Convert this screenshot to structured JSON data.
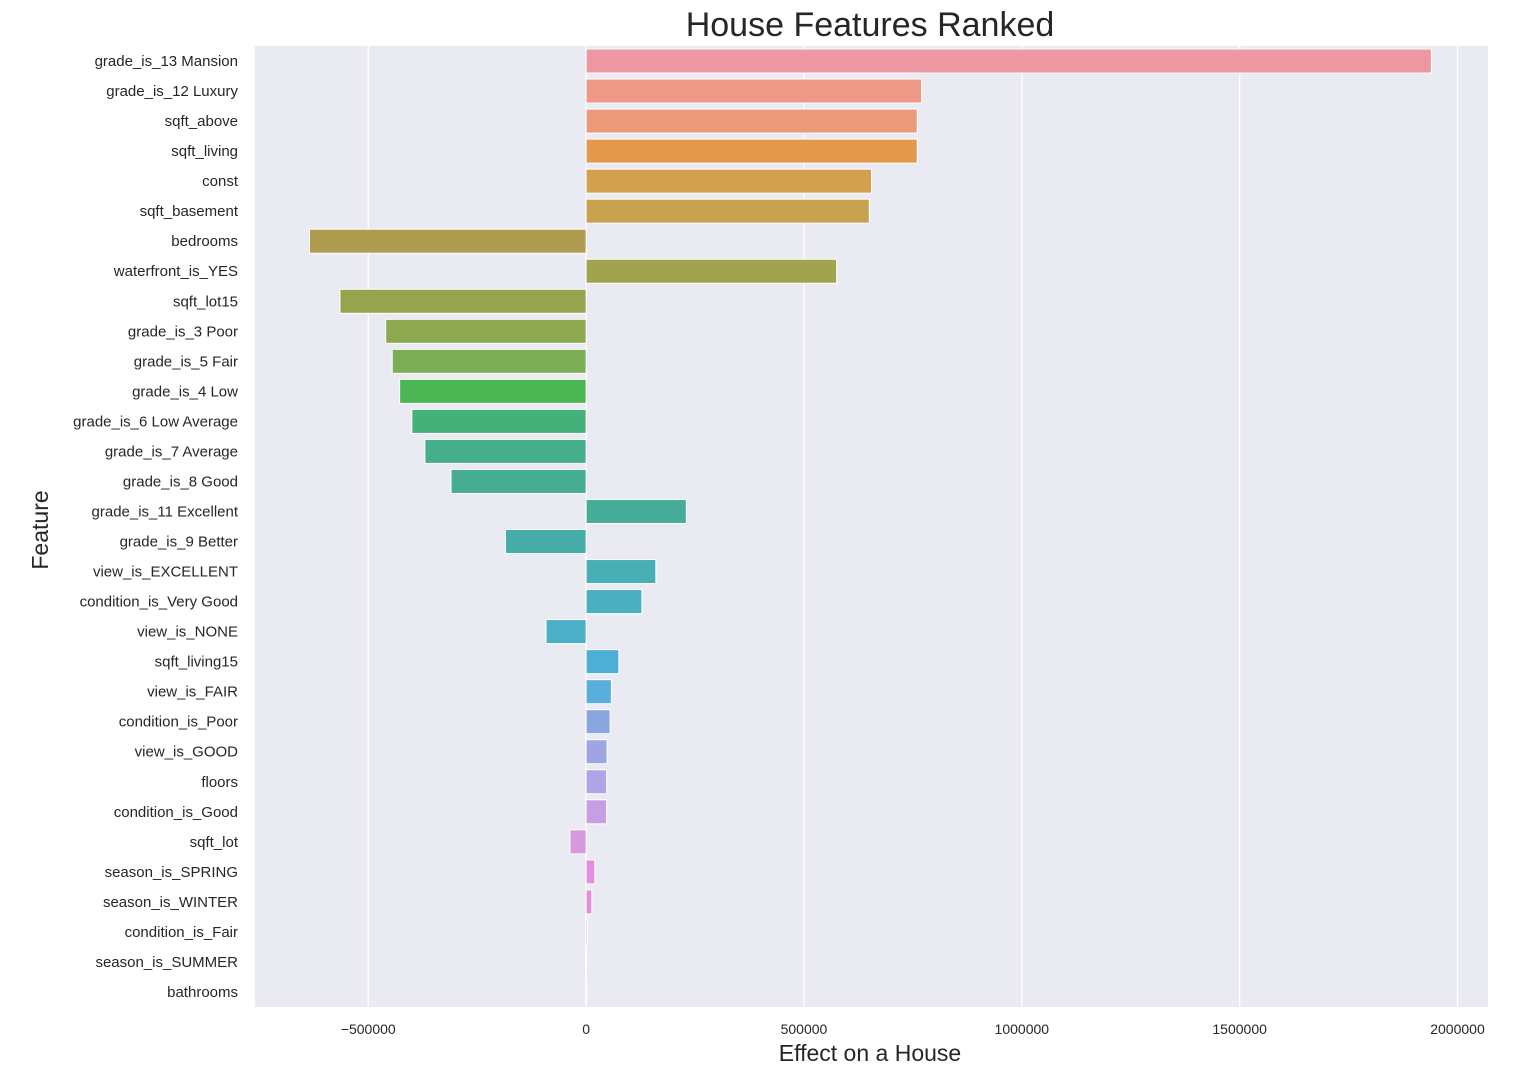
{
  "chart_data": {
    "type": "bar",
    "orientation": "horizontal",
    "title": "House Features Ranked",
    "xlabel": "Effect on a House",
    "ylabel": "Feature",
    "xlim": [
      -760000,
      2070000
    ],
    "xticks": [
      -500000,
      0,
      500000,
      1000000,
      1500000,
      2000000
    ],
    "xtick_labels": [
      "−500000",
      "0",
      "500000",
      "1000000",
      "1500000",
      "2000000"
    ],
    "grid": true,
    "background": "#EAEAF2",
    "categories": [
      "grade_is_13 Mansion",
      "grade_is_12 Luxury",
      "sqft_above",
      "sqft_living",
      "const",
      "sqft_basement",
      "bedrooms",
      "waterfront_is_YES",
      "sqft_lot15",
      "grade_is_3 Poor",
      "grade_is_5 Fair",
      "grade_is_4 Low",
      "grade_is_6 Low Average",
      "grade_is_7 Average",
      "grade_is_8 Good",
      "grade_is_11 Excellent",
      "grade_is_9 Better",
      "view_is_EXCELLENT",
      "condition_is_Very Good",
      "view_is_NONE",
      "sqft_living15",
      "view_is_FAIR",
      "condition_is_Poor",
      "view_is_GOOD",
      "floors",
      "condition_is_Good",
      "sqft_lot",
      "season_is_SPRING",
      "season_is_WINTER",
      "condition_is_Fair",
      "season_is_SUMMER",
      "bathrooms"
    ],
    "values": [
      1940000,
      770000,
      760000,
      760000,
      655000,
      650000,
      -635000,
      575000,
      -565000,
      -460000,
      -445000,
      -428000,
      -400000,
      -370000,
      -310000,
      230000,
      -185000,
      160000,
      128000,
      -92000,
      75000,
      58000,
      55000,
      48000,
      47000,
      47000,
      -37000,
      20000,
      13000,
      3000,
      -1500,
      -800
    ],
    "colors": [
      "#ED97A0",
      "#EC9988",
      "#EB9A79",
      "#E3994C",
      "#D2A04F",
      "#C9A24F",
      "#AF9C4F",
      "#A2A34E",
      "#97A44E",
      "#8EA84F",
      "#7CAE55",
      "#4CB554",
      "#46B07A",
      "#45AF8B",
      "#45AD92",
      "#45AD9A",
      "#46ADA8",
      "#48AFB4",
      "#4AAFBE",
      "#4CAFC8",
      "#4FAED5",
      "#5AAEDD",
      "#8AA6DF",
      "#9DA6E3",
      "#AEA4E6",
      "#C59EE4",
      "#D699DE",
      "#E18FDE",
      "#E68ED8",
      "#ED90CC",
      "#EC90C2",
      "#ED95BD"
    ]
  }
}
